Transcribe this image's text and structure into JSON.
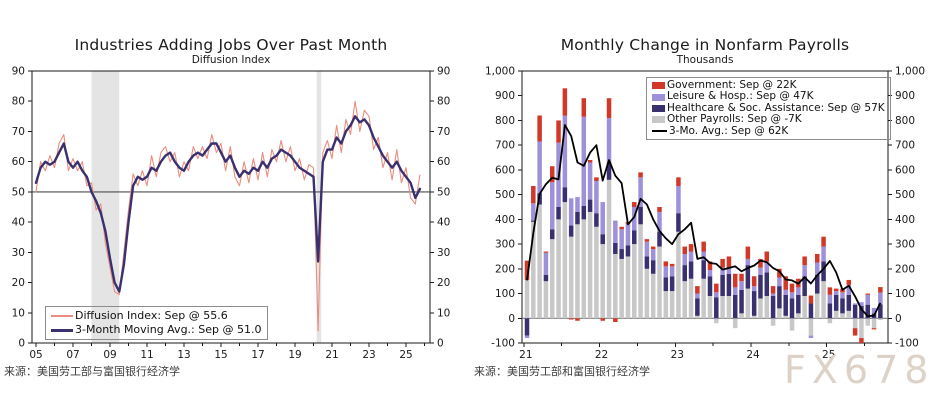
{
  "watermark": {
    "text": "FX678",
    "color": "#dcd2c8"
  },
  "chart_data": [
    {
      "type": "line",
      "title": "Industries Adding Jobs Over Past Month",
      "subtitle": "Diffusion Index",
      "source": "来源：美国劳工部与富国银行经济学",
      "axis": {
        "ylim": [
          0,
          90
        ],
        "ytick_step": 10,
        "x_start_year": 2005,
        "x_end_year": 2026,
        "xtick_labels": [
          "05",
          "07",
          "09",
          "11",
          "13",
          "15",
          "17",
          "19",
          "21",
          "23",
          "25"
        ],
        "reference_line": 50,
        "grid": "off",
        "legend_position": "bottom-left"
      },
      "recession_bands": [
        [
          2008.0,
          2009.5
        ],
        [
          2020.17,
          2020.42
        ]
      ],
      "x_start": 2005.0,
      "x_step": 0.25,
      "series": [
        {
          "name": "Diffusion Index: Sep @ 55.6",
          "color": "#ea8d7f",
          "sep_value": 55.6,
          "values": [
            50,
            60,
            57,
            62,
            58,
            66,
            69,
            57,
            61,
            57,
            60,
            52,
            53,
            44,
            46,
            33,
            25,
            17,
            16,
            30,
            44,
            56,
            52,
            57,
            52,
            62,
            55,
            63,
            65,
            60,
            63,
            55,
            60,
            57,
            65,
            61,
            65,
            61,
            69,
            63,
            66,
            57,
            65,
            55,
            52,
            60,
            53,
            61,
            54,
            63,
            55,
            64,
            60,
            67,
            60,
            65,
            57,
            61,
            54,
            59,
            58,
            4,
            63,
            67,
            61,
            72,
            63,
            74,
            69,
            80,
            70,
            77,
            75,
            64,
            68,
            58,
            63,
            54,
            64,
            53,
            58,
            48,
            46,
            55.6
          ]
        },
        {
          "name": "3-Month Moving Avg.: Sep @ 51.0",
          "color": "#39306f",
          "sep_value": 51.0,
          "values": [
            53,
            58,
            60,
            59,
            60,
            63,
            66,
            60,
            58,
            60,
            57,
            55,
            50,
            47,
            43,
            37,
            28,
            20,
            17,
            26,
            40,
            52,
            55,
            54,
            55,
            58,
            57,
            60,
            62,
            63,
            60,
            58,
            57,
            60,
            62,
            63,
            62,
            64,
            66,
            66,
            63,
            60,
            62,
            58,
            55,
            57,
            56,
            58,
            57,
            60,
            58,
            61,
            62,
            64,
            63,
            62,
            60,
            58,
            57,
            56,
            55,
            27,
            60,
            64,
            64,
            68,
            66,
            70,
            72,
            75,
            73,
            74,
            72,
            68,
            65,
            62,
            60,
            58,
            60,
            57,
            55,
            53,
            48,
            51
          ]
        }
      ]
    },
    {
      "type": "bar",
      "title": "Monthly Change in Nonfarm Payrolls",
      "subtitle": "Thousands",
      "source": "来源：美国劳工部和富国银行经济学",
      "axis": {
        "ylim": [
          -100,
          1000
        ],
        "ytick_step": 100,
        "xtick_labels": [
          "21",
          "22",
          "23",
          "24",
          "25"
        ],
        "grid": "off",
        "zero_line": 0,
        "legend_position": "top-right"
      },
      "x_months": {
        "start": "2021-01",
        "end": "2025-09",
        "count": 57
      },
      "stack_order_bottom_to_top": [
        "Other Payrolls",
        "Healthcare & Soc. Assistance",
        "Leisure & Hosp.",
        "Government"
      ],
      "components": [
        {
          "name": "Other Payrolls",
          "color": "#c8c8c8",
          "sep_value_k": -7,
          "values": [
            155,
            390,
            460,
            150,
            320,
            400,
            470,
            330,
            380,
            400,
            430,
            370,
            300,
            560,
            260,
            240,
            250,
            300,
            380,
            200,
            180,
            290,
            110,
            110,
            350,
            150,
            160,
            10,
            160,
            90,
            -20,
            90,
            90,
            -40,
            20,
            120,
            10,
            80,
            90,
            -30,
            40,
            10,
            -50,
            20,
            90,
            -70,
            100,
            150,
            -20,
            30,
            20,
            30,
            -40,
            -80,
            -30,
            -40,
            -7
          ]
        },
        {
          "name": "Healthcare & Soc. Assistance",
          "color": "#39306f",
          "sep_value_k": 57,
          "values": [
            -70,
            5,
            45,
            25,
            40,
            50,
            60,
            45,
            50,
            55,
            50,
            55,
            40,
            70,
            45,
            40,
            45,
            55,
            70,
            50,
            55,
            60,
            55,
            60,
            75,
            65,
            70,
            70,
            75,
            80,
            85,
            85,
            90,
            95,
            95,
            95,
            100,
            95,
            95,
            90,
            90,
            85,
            80,
            75,
            80,
            60,
            75,
            80,
            60,
            65,
            60,
            65,
            55,
            50,
            55,
            20,
            57
          ]
        },
        {
          "name": "Leisure & Hosp.",
          "color": "#9f90da",
          "sep_value_k": 47,
          "values": [
            -10,
            70,
            210,
            90,
            190,
            260,
            290,
            110,
            60,
            360,
            150,
            130,
            130,
            180,
            90,
            80,
            85,
            95,
            120,
            60,
            45,
            80,
            45,
            40,
            110,
            45,
            40,
            20,
            35,
            25,
            20,
            30,
            25,
            30,
            35,
            25,
            20,
            30,
            45,
            10,
            35,
            20,
            25,
            30,
            45,
            -10,
            50,
            60,
            35,
            15,
            25,
            40,
            5,
            15,
            40,
            22,
            47
          ]
        },
        {
          "name": "Government",
          "color": "#d13828",
          "sep_value_k": 22,
          "values": [
            78,
            70,
            105,
            5,
            65,
            90,
            110,
            -5,
            -10,
            75,
            10,
            15,
            -10,
            80,
            -15,
            10,
            10,
            20,
            20,
            10,
            10,
            20,
            20,
            10,
            35,
            30,
            30,
            30,
            40,
            35,
            35,
            35,
            45,
            55,
            30,
            50,
            40,
            35,
            40,
            30,
            35,
            55,
            35,
            35,
            35,
            32,
            35,
            40,
            30,
            10,
            15,
            20,
            -30,
            -20,
            5,
            -5,
            22
          ]
        }
      ],
      "line": {
        "name": "3-Mo. Avg.",
        "color": "#000000",
        "sep_value_k": 62,
        "derivation": "3-month moving average of monthly totals"
      },
      "legend": [
        {
          "label": "Government: Sep @ 22K",
          "color": "#d13828",
          "swatch": "box"
        },
        {
          "label": "Leisure & Hosp.: Sep @ 47K",
          "color": "#9f90da",
          "swatch": "box"
        },
        {
          "label": "Healthcare & Soc. Assistance: Sep @ 57K",
          "color": "#39306f",
          "swatch": "box"
        },
        {
          "label": "Other Payrolls: Sep @ -7K",
          "color": "#c8c8c8",
          "swatch": "box"
        },
        {
          "label": "3-Mo. Avg.: Sep @ 62K",
          "color": "#000000",
          "swatch": "line"
        }
      ]
    }
  ]
}
